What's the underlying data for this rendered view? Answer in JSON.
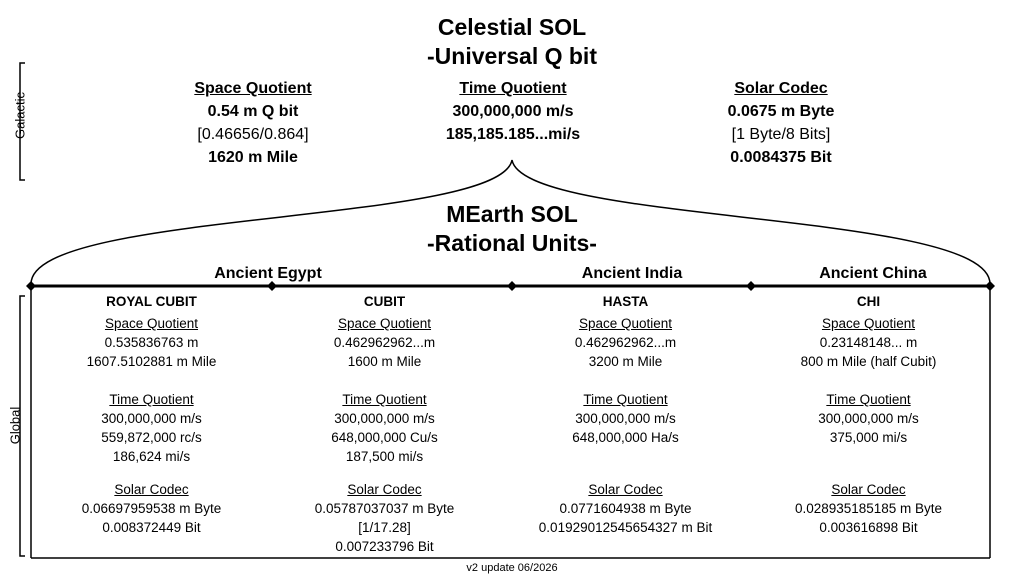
{
  "title": {
    "line1": "Celestial SOL",
    "line2": "-Universal Q bit"
  },
  "side_labels": {
    "galactic": "Galactic",
    "global": "Global"
  },
  "galactic": {
    "space": {
      "heading": "Space Quotient",
      "l1": "0.54 m Q bit",
      "l2": "[0.46656/0.864]",
      "l3": "1620 m Mile"
    },
    "time": {
      "heading": "Time Quotient",
      "l1": "300,000,000 m/s",
      "l2": "185,185.185...mi/s"
    },
    "solar": {
      "heading": "Solar Codec",
      "l1": "0.0675 m Byte",
      "l2": "[1 Byte/8 Bits]",
      "l3": "0.0084375 Bit"
    }
  },
  "mearth": {
    "line1": "MEarth SOL",
    "line2": "-Rational Units-"
  },
  "regions": {
    "egypt": "Ancient Egypt",
    "india": "Ancient India",
    "china": "Ancient China"
  },
  "columns": [
    {
      "name": "ROYAL CUBIT",
      "space_heading": "Space Quotient",
      "space": [
        "0.535836763 m",
        "1607.5102881 m Mile"
      ],
      "time_heading": "Time Quotient",
      "time": [
        "300,000,000 m/s",
        "559,872,000 rc/s",
        "186,624 mi/s"
      ],
      "solar_heading": "Solar Codec",
      "solar": [
        "0.06697959538 m Byte",
        "0.008372449 Bit"
      ]
    },
    {
      "name": "CUBIT",
      "space_heading": "Space Quotient",
      "space": [
        "0.462962962...m",
        "1600 m Mile"
      ],
      "time_heading": "Time Quotient",
      "time": [
        "300,000,000 m/s",
        "648,000,000 Cu/s",
        "187,500 mi/s"
      ],
      "solar_heading": "Solar Codec",
      "solar": [
        "0.05787037037 m Byte",
        "[1/17.28]",
        "0.007233796 Bit"
      ]
    },
    {
      "name": "HASTA",
      "space_heading": "Space Quotient",
      "space": [
        "0.462962962...m",
        "3200 m Mile"
      ],
      "time_heading": "Time Quotient",
      "time": [
        "300,000,000 m/s",
        "648,000,000 Ha/s"
      ],
      "solar_heading": "Solar Codec",
      "solar": [
        "0.0771604938 m Byte",
        "0.01929012545654327 m Bit"
      ]
    },
    {
      "name": "CHI",
      "space_heading": "Space Quotient",
      "space": [
        "0.23148148... m",
        "800 m Mile (half Cubit)"
      ],
      "time_heading": "Time Quotient",
      "time": [
        "300,000,000 m/s",
        "375,000 mi/s"
      ],
      "solar_heading": "Solar Codec",
      "solar": [
        "0.028935185185 m Byte",
        "0.003616898 Bit"
      ]
    }
  ],
  "footer": "v2 update 06/2026"
}
